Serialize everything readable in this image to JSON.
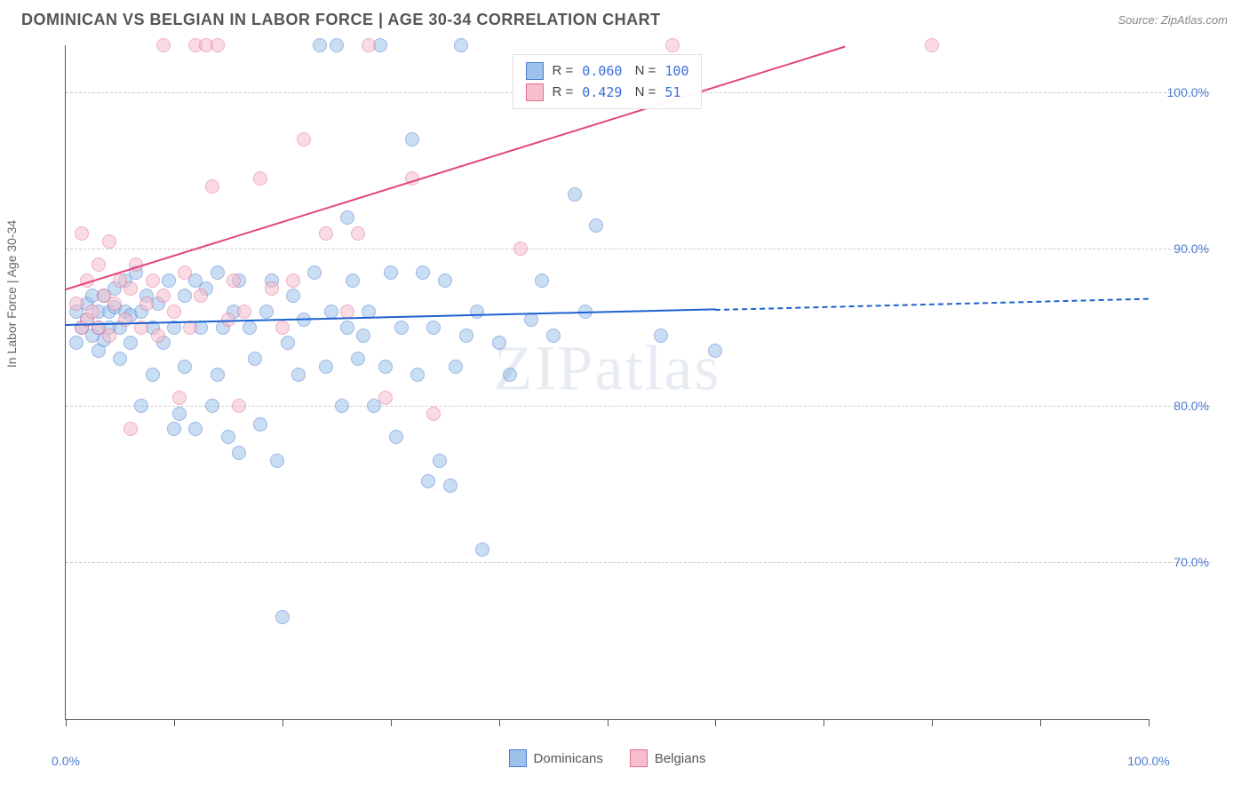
{
  "header": {
    "title": "DOMINICAN VS BELGIAN IN LABOR FORCE | AGE 30-34 CORRELATION CHART",
    "source": "Source: ZipAtlas.com"
  },
  "watermark": {
    "bold": "ZIP",
    "rest": "atlas"
  },
  "chart": {
    "type": "scatter",
    "y_axis_label": "In Labor Force | Age 30-34",
    "xlim": [
      0,
      100
    ],
    "ylim": [
      60,
      103
    ],
    "x_ticks": [
      0,
      10,
      20,
      30,
      40,
      50,
      60,
      70,
      80,
      90,
      100
    ],
    "x_tick_labels_shown": {
      "0": "0.0%",
      "100": "100.0%"
    },
    "y_gridlines": [
      70,
      80,
      90,
      100
    ],
    "y_tick_labels": {
      "70": "70.0%",
      "80": "80.0%",
      "90": "90.0%",
      "100": "100.0%"
    },
    "background_color": "#ffffff",
    "grid_color": "#cccccc",
    "axis_color": "#555555",
    "tick_label_color": "#4a7bd0",
    "marker_radius": 8,
    "marker_opacity": 0.55,
    "series": [
      {
        "name": "Dominicans",
        "fill_color": "#9ec3eb",
        "stroke_color": "#4a7bd0",
        "trend_color": "#1e62d0",
        "R": "0.060",
        "N": "100",
        "trend": {
          "x1": 0,
          "y1": 85.2,
          "x2": 60,
          "y2": 86.2,
          "solid_until_x": 60,
          "dash_to_x": 100,
          "dash_y2": 86.9
        },
        "points": [
          [
            1,
            86
          ],
          [
            1,
            84
          ],
          [
            1.5,
            85
          ],
          [
            2,
            85.5
          ],
          [
            2,
            86.5
          ],
          [
            2.5,
            84.5
          ],
          [
            2.5,
            87
          ],
          [
            3,
            85
          ],
          [
            3,
            83.5
          ],
          [
            3,
            86
          ],
          [
            3.5,
            87
          ],
          [
            3.5,
            84.2
          ],
          [
            4,
            86
          ],
          [
            4,
            85
          ],
          [
            4.5,
            86.3
          ],
          [
            4.5,
            87.5
          ],
          [
            5,
            85
          ],
          [
            5,
            83
          ],
          [
            5.5,
            86
          ],
          [
            5.5,
            88
          ],
          [
            6,
            85.8
          ],
          [
            6,
            84
          ],
          [
            6.5,
            88.5
          ],
          [
            7,
            86
          ],
          [
            7,
            80
          ],
          [
            7.5,
            87
          ],
          [
            8,
            85
          ],
          [
            8,
            82
          ],
          [
            8.5,
            86.5
          ],
          [
            9,
            84
          ],
          [
            9.5,
            88
          ],
          [
            10,
            85
          ],
          [
            10,
            78.5
          ],
          [
            10.5,
            79.5
          ],
          [
            11,
            87
          ],
          [
            11,
            82.5
          ],
          [
            12,
            88
          ],
          [
            12,
            78.5
          ],
          [
            12.5,
            85
          ],
          [
            13,
            87.5
          ],
          [
            13.5,
            80
          ],
          [
            14,
            88.5
          ],
          [
            14,
            82
          ],
          [
            14.5,
            85
          ],
          [
            15,
            78
          ],
          [
            15.5,
            86
          ],
          [
            16,
            88
          ],
          [
            16,
            77
          ],
          [
            17,
            85
          ],
          [
            17.5,
            83
          ],
          [
            18,
            78.8
          ],
          [
            18.5,
            86
          ],
          [
            19,
            88
          ],
          [
            19.5,
            76.5
          ],
          [
            20,
            66.5
          ],
          [
            20.5,
            84
          ],
          [
            21,
            87
          ],
          [
            21.5,
            82
          ],
          [
            22,
            85.5
          ],
          [
            23,
            88.5
          ],
          [
            23.5,
            103
          ],
          [
            24,
            82.5
          ],
          [
            24.5,
            86
          ],
          [
            25,
            103
          ],
          [
            25.5,
            80
          ],
          [
            26,
            92
          ],
          [
            26,
            85
          ],
          [
            26.5,
            88
          ],
          [
            27,
            83
          ],
          [
            27.5,
            84.5
          ],
          [
            28,
            86
          ],
          [
            28.5,
            80
          ],
          [
            29,
            103
          ],
          [
            29.5,
            82.5
          ],
          [
            30,
            88.5
          ],
          [
            30.5,
            78
          ],
          [
            31,
            85
          ],
          [
            32,
            97
          ],
          [
            32.5,
            82
          ],
          [
            33,
            88.5
          ],
          [
            33.5,
            75.2
          ],
          [
            34,
            85
          ],
          [
            34.5,
            76.5
          ],
          [
            35,
            88
          ],
          [
            35.5,
            74.9
          ],
          [
            36,
            82.5
          ],
          [
            36.5,
            103
          ],
          [
            37,
            84.5
          ],
          [
            38,
            86
          ],
          [
            38.5,
            70.8
          ],
          [
            40,
            84
          ],
          [
            41,
            82
          ],
          [
            43,
            85.5
          ],
          [
            44,
            88
          ],
          [
            45,
            84.5
          ],
          [
            47,
            93.5
          ],
          [
            48,
            86
          ],
          [
            49,
            91.5
          ],
          [
            55,
            84.5
          ],
          [
            60,
            83.5
          ]
        ]
      },
      {
        "name": "Belgians",
        "fill_color": "#f5bfcd",
        "stroke_color": "#e86b8f",
        "trend_color": "#e2477a",
        "R": "0.429",
        "N": "51",
        "trend": {
          "x1": 0,
          "y1": 87.5,
          "x2": 72,
          "y2": 103,
          "solid_until_x": 72
        },
        "points": [
          [
            1,
            86.5
          ],
          [
            1.5,
            85
          ],
          [
            1.5,
            91
          ],
          [
            2,
            88
          ],
          [
            2,
            85.5
          ],
          [
            2.5,
            86
          ],
          [
            3,
            89
          ],
          [
            3,
            85
          ],
          [
            3.5,
            87
          ],
          [
            4,
            90.5
          ],
          [
            4,
            84.5
          ],
          [
            4.5,
            86.5
          ],
          [
            5,
            88
          ],
          [
            5.5,
            85.5
          ],
          [
            6,
            87.5
          ],
          [
            6,
            78.5
          ],
          [
            6.5,
            89
          ],
          [
            7,
            85
          ],
          [
            7.5,
            86.5
          ],
          [
            8,
            88
          ],
          [
            8.5,
            84.5
          ],
          [
            9,
            87
          ],
          [
            9,
            103
          ],
          [
            10,
            86
          ],
          [
            10.5,
            80.5
          ],
          [
            11,
            88.5
          ],
          [
            11.5,
            85
          ],
          [
            12,
            103
          ],
          [
            12.5,
            87
          ],
          [
            13,
            103
          ],
          [
            13.5,
            94
          ],
          [
            14,
            103
          ],
          [
            15,
            85.5
          ],
          [
            15.5,
            88
          ],
          [
            16,
            80
          ],
          [
            16.5,
            86
          ],
          [
            18,
            94.5
          ],
          [
            19,
            87.5
          ],
          [
            20,
            85
          ],
          [
            21,
            88
          ],
          [
            22,
            97
          ],
          [
            24,
            91
          ],
          [
            26,
            86
          ],
          [
            27,
            91
          ],
          [
            28,
            103
          ],
          [
            29.5,
            80.5
          ],
          [
            32,
            94.5
          ],
          [
            34,
            79.5
          ],
          [
            42,
            90
          ],
          [
            56,
            103
          ],
          [
            80,
            103
          ]
        ]
      }
    ],
    "legend_top": {
      "rows": [
        {
          "swatch_fill": "#9ec3eb",
          "swatch_stroke": "#4a7bd0",
          "label_r": "R =",
          "val_r": "0.060",
          "label_n": "N =",
          "val_n": "100"
        },
        {
          "swatch_fill": "#f5bfcd",
          "swatch_stroke": "#e86b8f",
          "label_r": "R =",
          "val_r": "0.429",
          "label_n": "N =",
          "val_n": " 51"
        }
      ]
    },
    "legend_bottom": [
      {
        "swatch_fill": "#9ec3eb",
        "swatch_stroke": "#4a7bd0",
        "label": "Dominicans"
      },
      {
        "swatch_fill": "#f5bfcd",
        "swatch_stroke": "#e86b8f",
        "label": "Belgians"
      }
    ]
  }
}
